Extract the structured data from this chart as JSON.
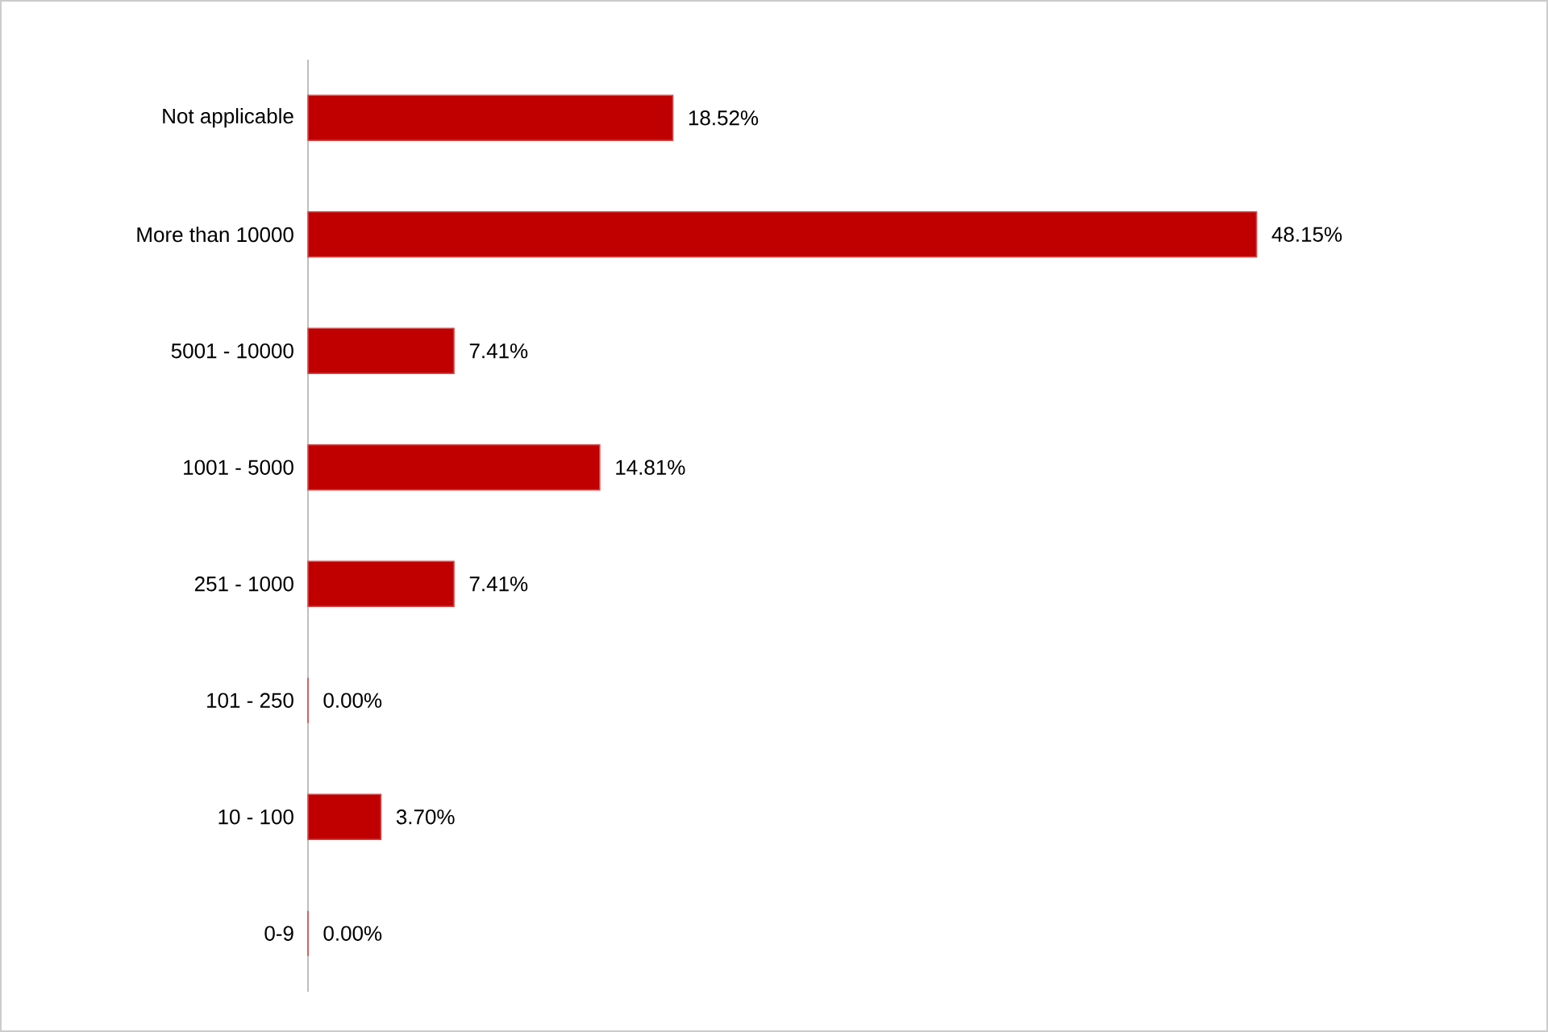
{
  "chart_data": {
    "type": "bar",
    "orientation": "horizontal",
    "categories": [
      "Not applicable",
      "More than 10000",
      "5001 - 10000",
      "1001 - 5000",
      "251 - 1000",
      "101 - 250",
      "10 - 100",
      "0-9"
    ],
    "values": [
      18.52,
      48.15,
      7.41,
      14.81,
      7.41,
      0,
      3.7,
      0
    ],
    "value_labels": [
      "18.52%",
      "48.15%",
      "7.41%",
      "14.81%",
      "7.41%",
      "0.00%",
      "3.70%",
      "0.00%"
    ],
    "color": "#c00000"
  }
}
